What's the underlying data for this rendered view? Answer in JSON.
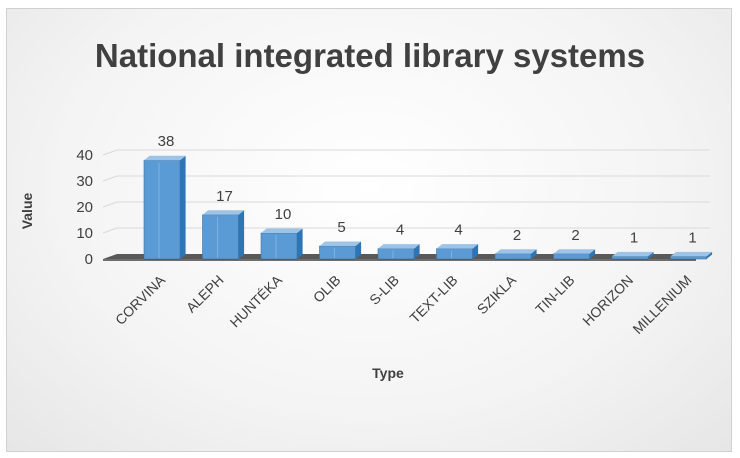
{
  "chart_data": {
    "type": "bar",
    "title": "National integrated library systems",
    "xlabel": "Type",
    "ylabel": "Value",
    "categories": [
      "CORVINA",
      "ALEPH",
      "HUNTÉKA",
      "OLIB",
      "S-LIB",
      "TEXT-LIB",
      "SZIKLA",
      "TIN-LIB",
      "HORIZON",
      "MILLENIUM"
    ],
    "values": [
      38,
      17,
      10,
      5,
      4,
      4,
      2,
      2,
      1,
      1
    ],
    "ylim": [
      0,
      40
    ],
    "yticks": [
      0,
      10,
      20,
      30,
      40
    ],
    "grid": true,
    "legend": "none",
    "colors": {
      "bar": "#5b9bd5",
      "bar_side": "#2e75b6",
      "bar_top": "#9dc3e6",
      "floor": "#595959"
    }
  }
}
